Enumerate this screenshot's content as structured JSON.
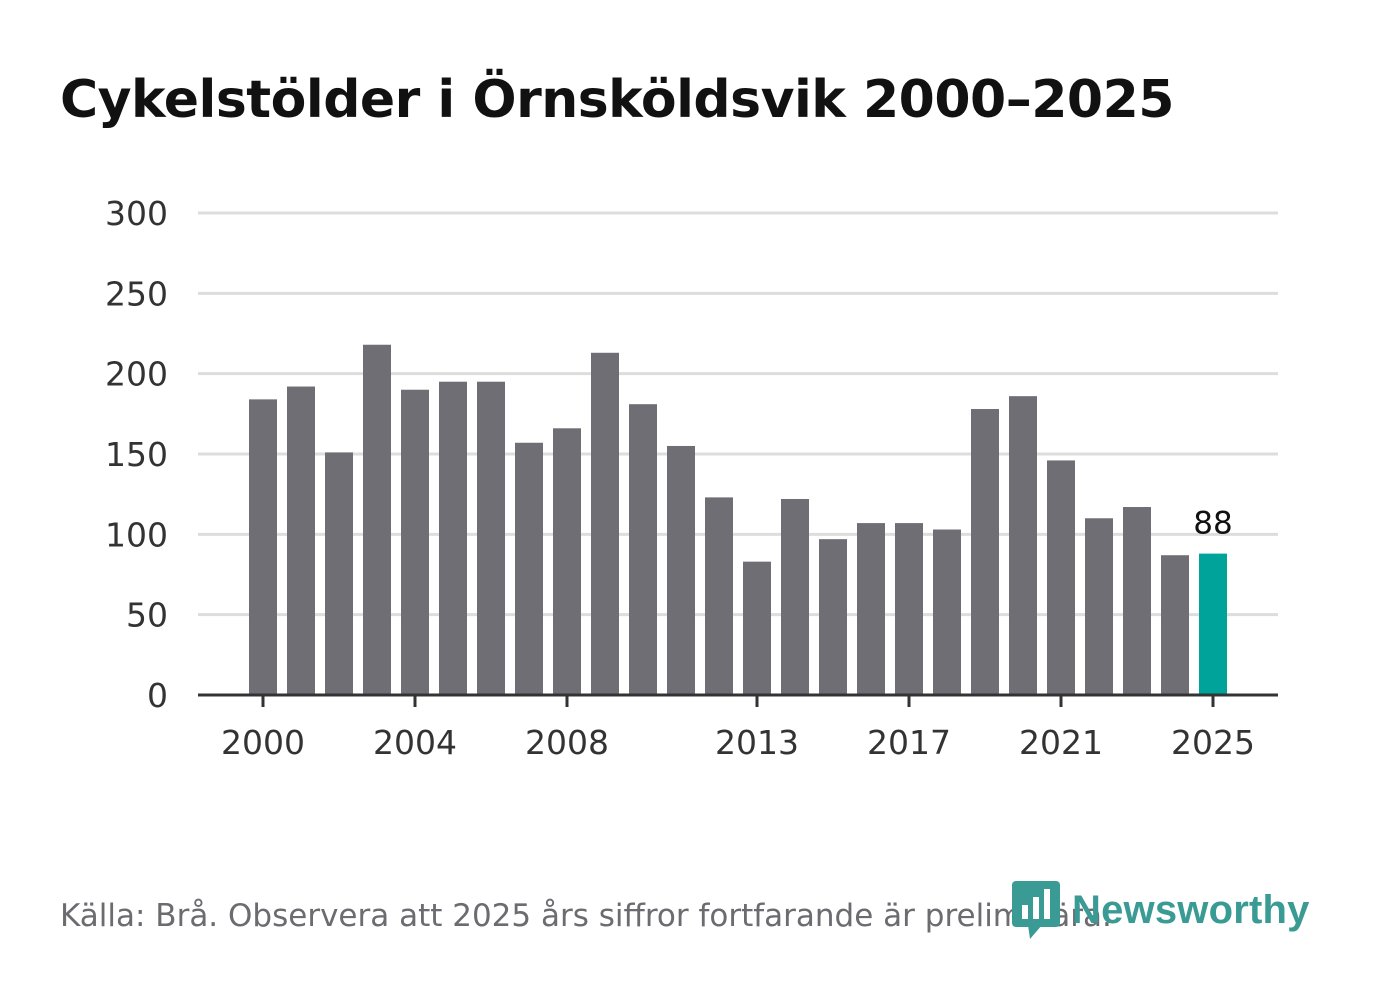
{
  "chart_data": {
    "type": "bar",
    "title": "Cykelstölder i Örnsköldsvik 2000–2025",
    "categories": [
      "2000",
      "2001",
      "2002",
      "2003",
      "2004",
      "2005",
      "2006",
      "2007",
      "2008",
      "2009",
      "2010",
      "2011",
      "2012",
      "2013",
      "2014",
      "2015",
      "2016",
      "2017",
      "2018",
      "2019",
      "2020",
      "2021",
      "2022",
      "2023",
      "2024",
      "2025"
    ],
    "values": [
      184,
      192,
      151,
      218,
      190,
      195,
      195,
      157,
      166,
      213,
      181,
      155,
      123,
      83,
      122,
      97,
      107,
      107,
      103,
      178,
      186,
      146,
      110,
      117,
      87,
      88
    ],
    "xticks": [
      "2000",
      "2004",
      "2008",
      "2013",
      "2017",
      "2021",
      "2025"
    ],
    "yticks": [
      "0",
      "50",
      "100",
      "150",
      "200",
      "250",
      "300"
    ],
    "ylim": [
      0,
      300
    ],
    "xlabel": "",
    "ylabel": "",
    "grid": true,
    "highlight": {
      "category": "2025",
      "label": "88"
    },
    "colors": {
      "bar": "#6f6e74",
      "highlight": "#00a39a",
      "grid": "#dddddd",
      "axis": "#333333",
      "text": "#333333"
    }
  },
  "footer": {
    "source": "Källa: Brå. Observera att 2025 års siffror fortfarande är preliminära."
  },
  "brand": {
    "name": "Newsworthy",
    "icon": "newsworthy-logo-icon",
    "color": "#3a9b94"
  }
}
